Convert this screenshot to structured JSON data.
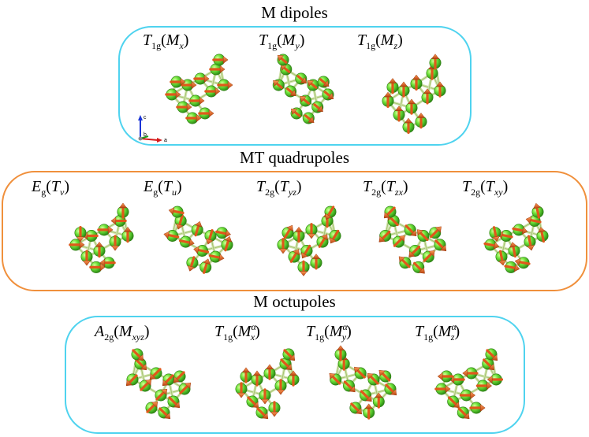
{
  "colors": {
    "dipole_border": "#4fd3ef",
    "quadrupole_border": "#f0903c",
    "octupole_border": "#4fd3ef",
    "atom": "#6ee33a",
    "atom_dark": "#2f8f16",
    "bond": "#cfe2a8",
    "arrow": "#e0581a"
  },
  "sections": {
    "dipoles": {
      "title": "M dipoles",
      "items": [
        {
          "main": "T",
          "sub": "1g",
          "arg": "M",
          "arg_sub": "x",
          "arg_sup": ""
        },
        {
          "main": "T",
          "sub": "1g",
          "arg": "M",
          "arg_sub": "y",
          "arg_sup": ""
        },
        {
          "main": "T",
          "sub": "1g",
          "arg": "M",
          "arg_sub": "z",
          "arg_sup": ""
        }
      ]
    },
    "quadrupoles": {
      "title": "MT quadrupoles",
      "items": [
        {
          "main": "E",
          "sub": "g",
          "arg": "T",
          "arg_sub": "v",
          "arg_sup": ""
        },
        {
          "main": "E",
          "sub": "g",
          "arg": "T",
          "arg_sub": "u",
          "arg_sup": ""
        },
        {
          "main": "T",
          "sub": "2g",
          "arg": "T",
          "arg_sub": "yz",
          "arg_sup": ""
        },
        {
          "main": "T",
          "sub": "2g",
          "arg": "T",
          "arg_sub": "zx",
          "arg_sup": ""
        },
        {
          "main": "T",
          "sub": "2g",
          "arg": "T",
          "arg_sub": "xy",
          "arg_sup": ""
        }
      ]
    },
    "octupoles": {
      "title": "M octupoles",
      "items": [
        {
          "main": "A",
          "sub": "2g",
          "arg": "M",
          "arg_sub": "xyz",
          "arg_sup": ""
        },
        {
          "main": "T",
          "sub": "1g",
          "arg": "M",
          "arg_sub": "x",
          "arg_sup": "α"
        },
        {
          "main": "T",
          "sub": "1g",
          "arg": "M",
          "arg_sub": "y",
          "arg_sup": "α"
        },
        {
          "main": "T",
          "sub": "1g",
          "arg": "M",
          "arg_sub": "z",
          "arg_sup": "α"
        }
      ]
    }
  },
  "axes": {
    "c": "c",
    "b": "b",
    "a": "a"
  }
}
